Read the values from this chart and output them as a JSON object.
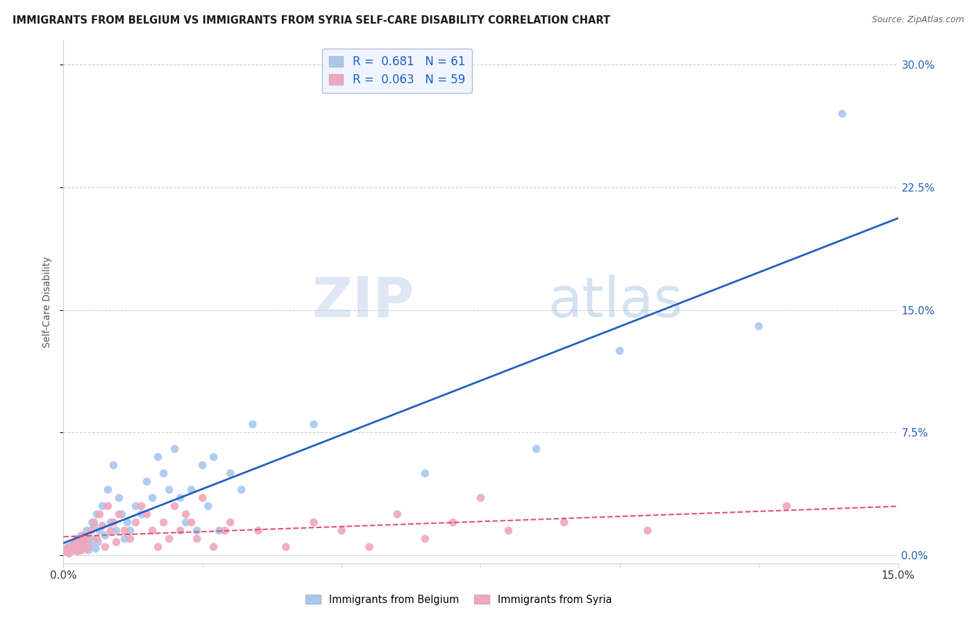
{
  "title": "IMMIGRANTS FROM BELGIUM VS IMMIGRANTS FROM SYRIA SELF-CARE DISABILITY CORRELATION CHART",
  "source": "Source: ZipAtlas.com",
  "ylabel": "Self-Care Disability",
  "r_belgium": 0.681,
  "n_belgium": 61,
  "r_syria": 0.063,
  "n_syria": 59,
  "color_belgium": "#a8c8f0",
  "color_syria": "#f0a8bc",
  "line_color_belgium": "#2060c0",
  "line_color_syria": "#e05070",
  "legend_box_color": "#f0f4ff",
  "legend_border_color": "#b0c0e0",
  "ytick_values": [
    0.0,
    7.5,
    15.0,
    22.5,
    30.0
  ],
  "xlim": [
    0.0,
    15.0
  ],
  "ylim": [
    -0.5,
    31.5
  ],
  "belgium_x": [
    0.05,
    0.08,
    0.1,
    0.12,
    0.15,
    0.18,
    0.2,
    0.22,
    0.25,
    0.28,
    0.3,
    0.32,
    0.35,
    0.38,
    0.4,
    0.42,
    0.45,
    0.48,
    0.5,
    0.52,
    0.55,
    0.58,
    0.6,
    0.62,
    0.65,
    0.7,
    0.75,
    0.8,
    0.85,
    0.9,
    0.95,
    1.0,
    1.05,
    1.1,
    1.15,
    1.2,
    1.3,
    1.4,
    1.5,
    1.6,
    1.7,
    1.8,
    1.9,
    2.0,
    2.1,
    2.2,
    2.3,
    2.4,
    2.5,
    2.6,
    2.7,
    2.8,
    3.0,
    3.2,
    3.4,
    4.5,
    6.5,
    8.5,
    10.0,
    12.5,
    14.0
  ],
  "belgium_y": [
    0.3,
    0.5,
    0.2,
    0.4,
    0.6,
    0.3,
    0.8,
    0.5,
    1.0,
    0.3,
    0.7,
    1.2,
    0.4,
    0.9,
    0.5,
    1.5,
    0.3,
    1.0,
    0.6,
    2.0,
    1.8,
    0.4,
    2.5,
    0.8,
    1.5,
    3.0,
    1.2,
    4.0,
    2.0,
    5.5,
    1.5,
    3.5,
    2.5,
    1.0,
    2.0,
    1.5,
    3.0,
    2.5,
    4.5,
    3.5,
    6.0,
    5.0,
    4.0,
    6.5,
    3.5,
    2.0,
    4.0,
    1.5,
    5.5,
    3.0,
    6.0,
    1.5,
    5.0,
    4.0,
    8.0,
    8.0,
    5.0,
    6.5,
    12.5,
    14.0,
    27.0
  ],
  "syria_x": [
    0.05,
    0.08,
    0.1,
    0.12,
    0.15,
    0.18,
    0.2,
    0.22,
    0.25,
    0.28,
    0.3,
    0.32,
    0.35,
    0.38,
    0.4,
    0.42,
    0.45,
    0.5,
    0.55,
    0.6,
    0.65,
    0.7,
    0.75,
    0.8,
    0.85,
    0.9,
    0.95,
    1.0,
    1.1,
    1.2,
    1.3,
    1.4,
    1.5,
    1.6,
    1.7,
    1.8,
    1.9,
    2.0,
    2.1,
    2.2,
    2.3,
    2.4,
    2.5,
    2.7,
    2.9,
    3.0,
    3.5,
    4.0,
    4.5,
    5.0,
    5.5,
    6.0,
    6.5,
    7.0,
    7.5,
    8.0,
    9.0,
    10.5,
    13.0
  ],
  "syria_y": [
    0.2,
    0.4,
    0.1,
    0.5,
    0.3,
    0.6,
    0.4,
    0.8,
    0.2,
    0.5,
    1.0,
    0.3,
    0.7,
    1.2,
    0.4,
    0.9,
    0.5,
    1.5,
    2.0,
    1.0,
    2.5,
    1.8,
    0.5,
    3.0,
    1.5,
    2.0,
    0.8,
    2.5,
    1.5,
    1.0,
    2.0,
    3.0,
    2.5,
    1.5,
    0.5,
    2.0,
    1.0,
    3.0,
    1.5,
    2.5,
    2.0,
    1.0,
    3.5,
    0.5,
    1.5,
    2.0,
    1.5,
    0.5,
    2.0,
    1.5,
    0.5,
    2.5,
    1.0,
    2.0,
    3.5,
    1.5,
    2.0,
    1.5,
    3.0
  ],
  "watermark_zip": "ZIP",
  "watermark_atlas": "atlas",
  "background_color": "#ffffff",
  "grid_color": "#d0d0d0"
}
